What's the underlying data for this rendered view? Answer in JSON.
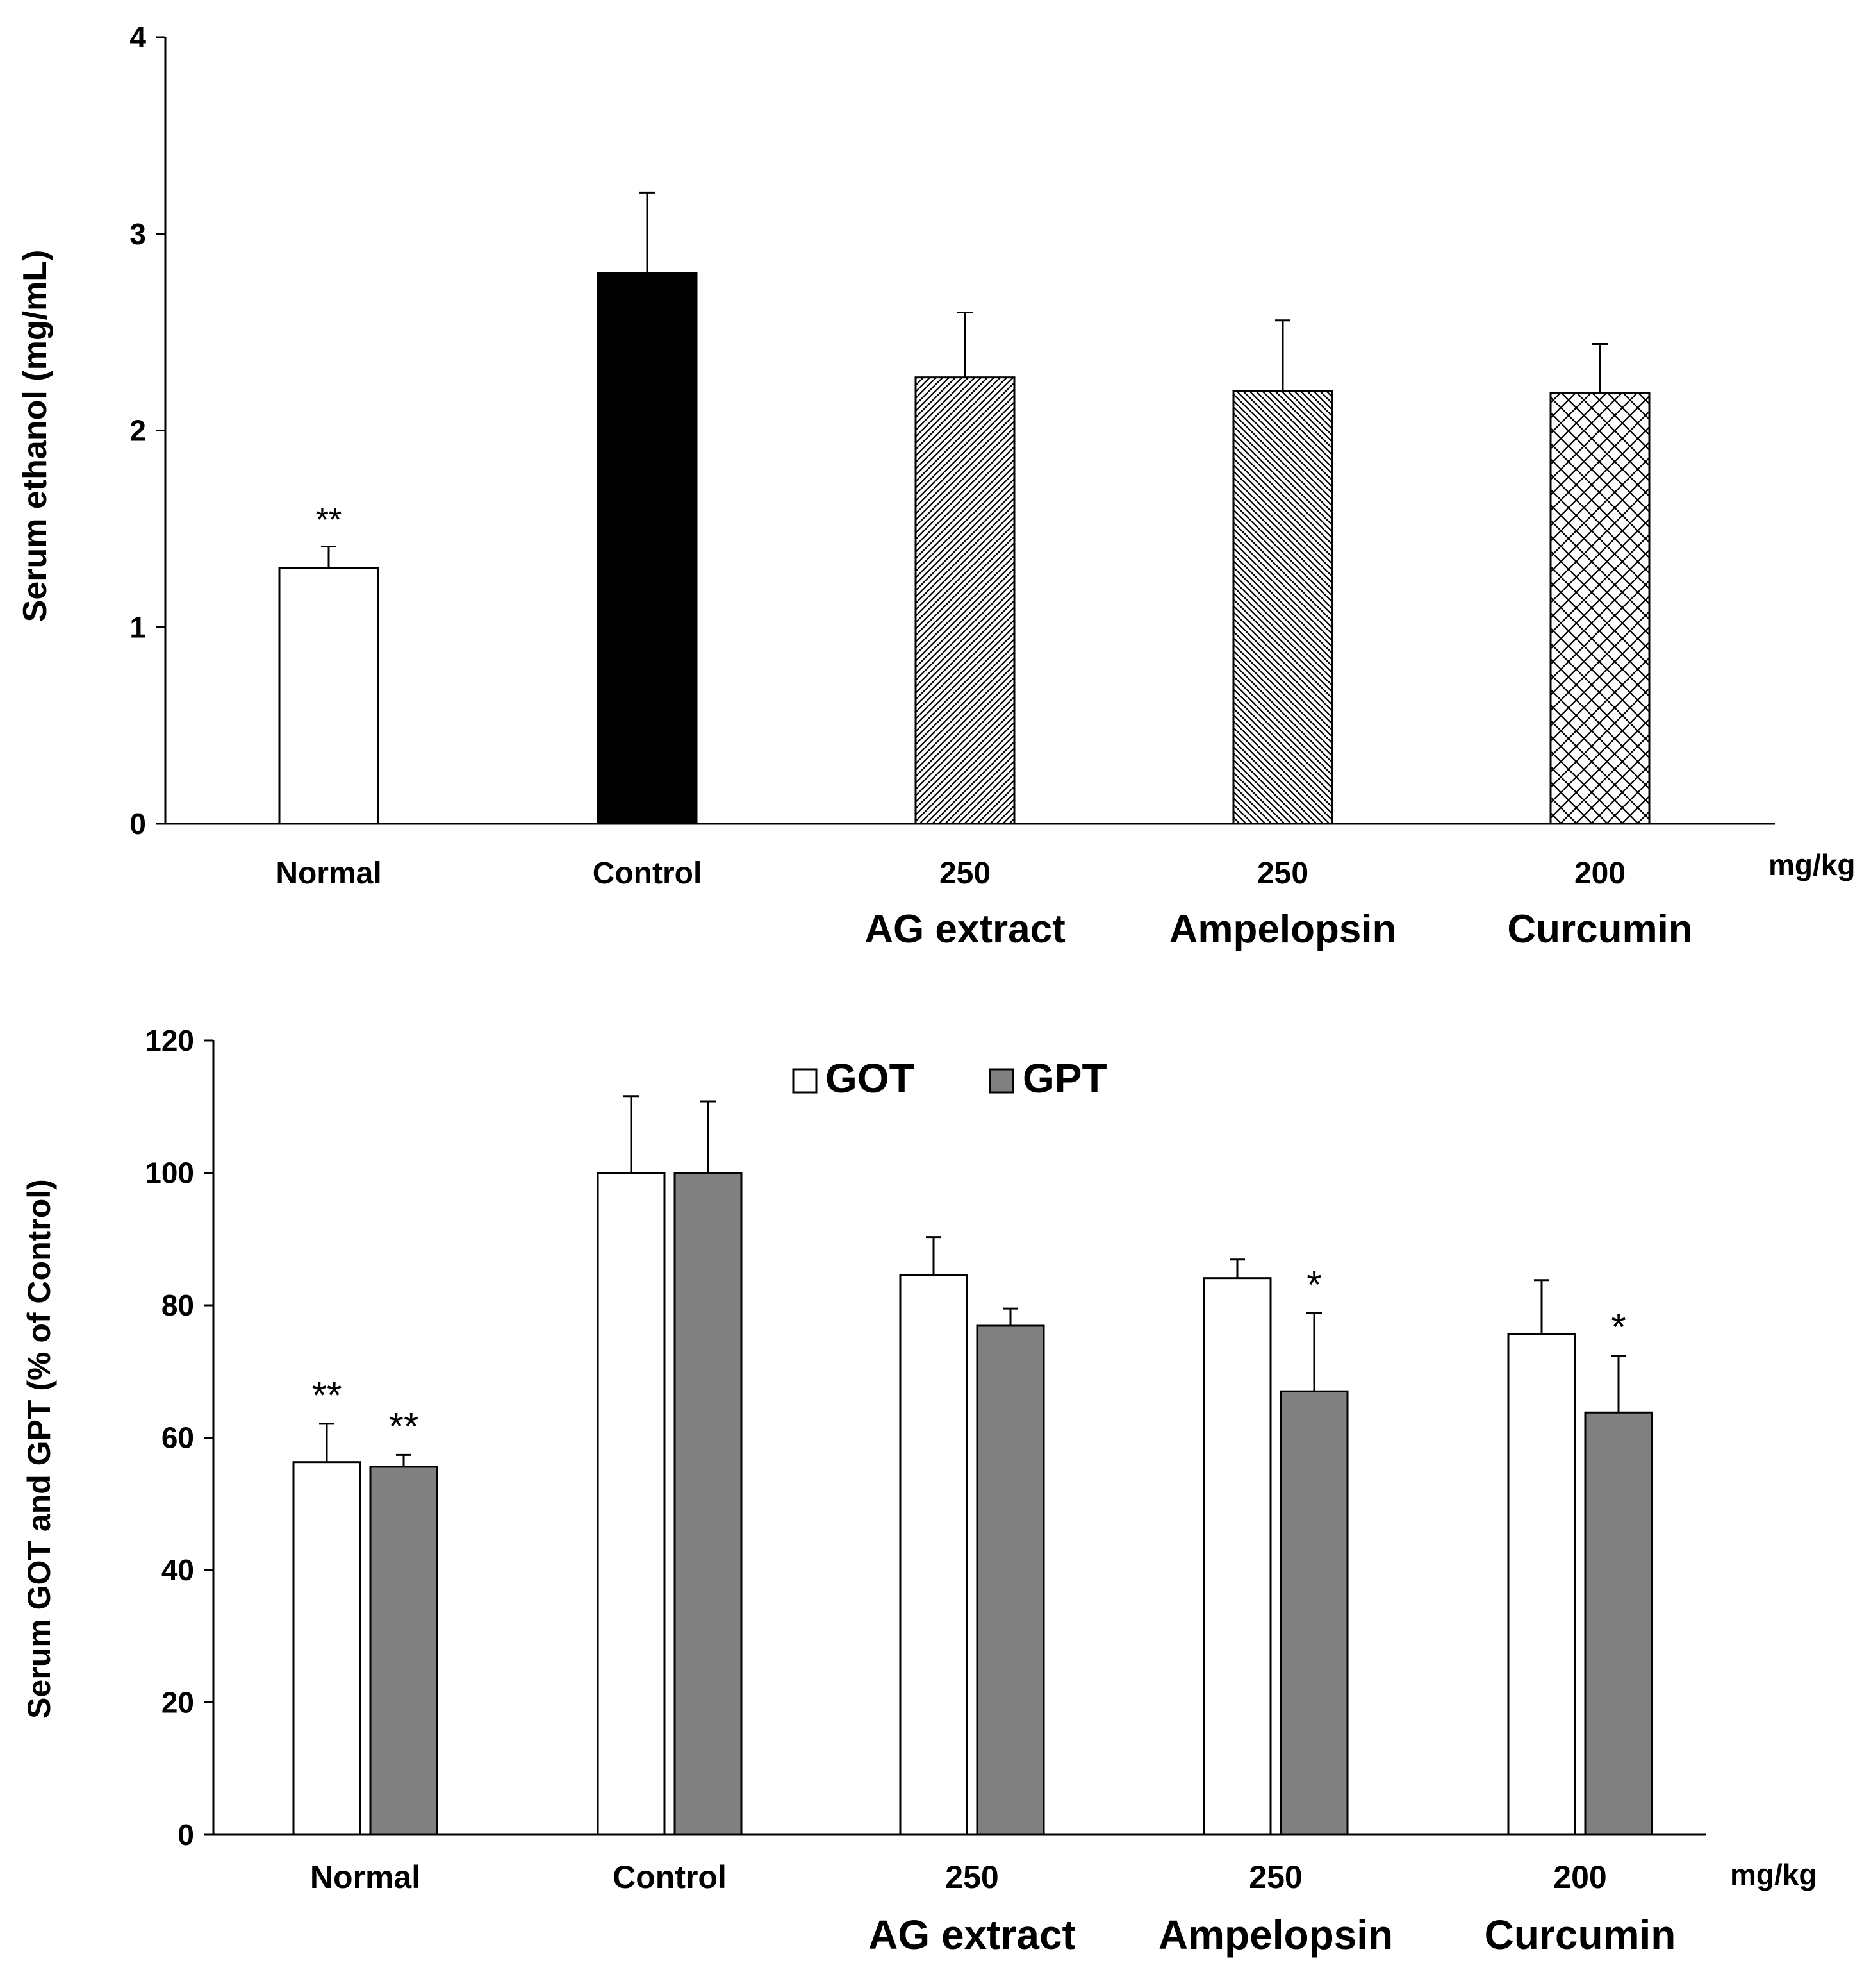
{
  "chart_data": [
    {
      "type": "bar",
      "ylabel": "Serum ethanol (mg/mL)",
      "ylim": [
        0,
        4
      ],
      "yticks": [
        0,
        1,
        2,
        3,
        4
      ],
      "unit_label": "mg/kg",
      "categories": [
        {
          "dose": "Normal",
          "group": ""
        },
        {
          "dose": "Control",
          "group": ""
        },
        {
          "dose": "250",
          "group": "AG extract"
        },
        {
          "dose": "250",
          "group": "Ampelopsin"
        },
        {
          "dose": "200",
          "group": "Curcumin"
        }
      ],
      "series": [
        {
          "name": "Serum ethanol",
          "values": [
            1.3,
            2.8,
            2.27,
            2.2,
            2.19
          ],
          "errors": [
            0.11,
            0.41,
            0.33,
            0.36,
            0.25
          ],
          "fills": [
            "white",
            "black",
            "hatch-right",
            "hatch-left",
            "crosshatch"
          ],
          "significance": [
            "**",
            "",
            "",
            "",
            ""
          ]
        }
      ]
    },
    {
      "type": "bar",
      "ylabel": "Serum GOT and GPT  (% of Control)",
      "ylim": [
        0,
        120
      ],
      "yticks": [
        0,
        20,
        40,
        60,
        80,
        100,
        120
      ],
      "unit_label": "mg/kg",
      "legend": {
        "position": "top-center",
        "labels": [
          "GOT",
          "GPT"
        ]
      },
      "categories": [
        {
          "dose": "Normal",
          "group": ""
        },
        {
          "dose": "Control",
          "group": ""
        },
        {
          "dose": "250",
          "group": "AG extract"
        },
        {
          "dose": "250",
          "group": "Ampelopsin"
        },
        {
          "dose": "200",
          "group": "Curcumin"
        }
      ],
      "series": [
        {
          "name": "GOT",
          "color": "#ffffff",
          "values": [
            56.3,
            100,
            84.6,
            84.1,
            75.6
          ],
          "errors": [
            5.8,
            11.6,
            5.7,
            2.8,
            8.2
          ],
          "significance": [
            "**",
            "",
            "",
            "",
            ""
          ]
        },
        {
          "name": "GPT",
          "color": "#808080",
          "values": [
            55.6,
            100,
            76.9,
            67.0,
            63.8
          ],
          "errors": [
            1.8,
            10.8,
            2.6,
            11.8,
            8.6
          ],
          "significance": [
            "**",
            "",
            "",
            "*",
            "*"
          ]
        }
      ]
    }
  ]
}
